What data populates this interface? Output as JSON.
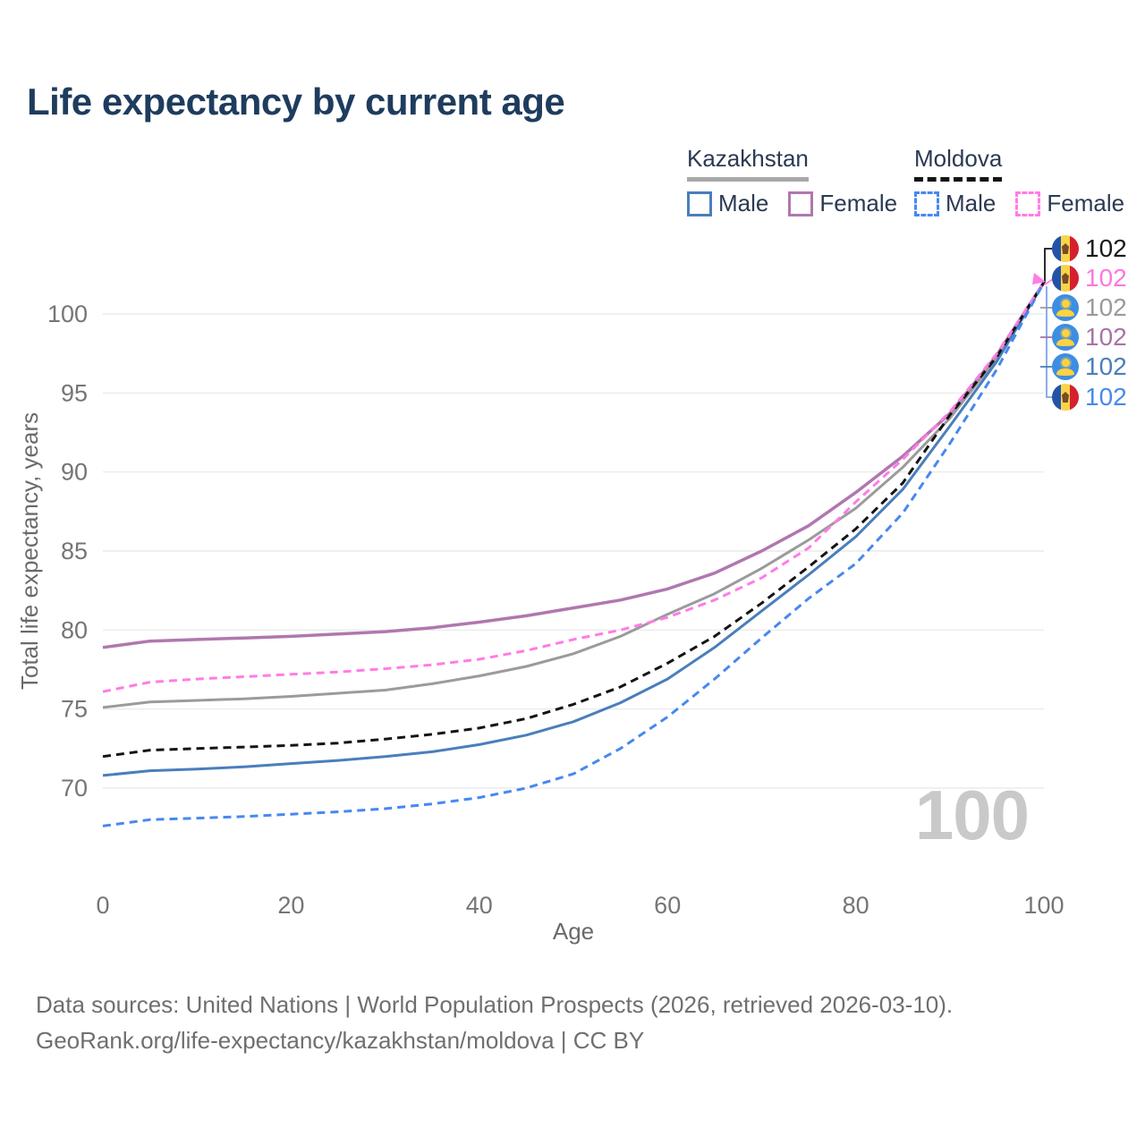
{
  "title": "Life expectancy by current age",
  "legend": {
    "groups": [
      {
        "name": "Kazakhstan",
        "line_style": "solid",
        "underline_color": "#a8a8a8",
        "items": [
          {
            "label": "Male",
            "color": "#4a7ebc",
            "dashed": false
          },
          {
            "label": "Female",
            "color": "#b077af",
            "dashed": false
          }
        ]
      },
      {
        "name": "Moldova",
        "line_style": "dashed",
        "underline_color": "#141414",
        "items": [
          {
            "label": "Male",
            "color": "#4788f0",
            "dashed": true
          },
          {
            "label": "Female",
            "color": "#ff7ce5",
            "dashed": true
          }
        ]
      }
    ]
  },
  "end_labels": [
    {
      "flag": "moldova",
      "value": "102",
      "color": "#1a1a1a",
      "series": "Moldova total"
    },
    {
      "flag": "moldova",
      "value": "102",
      "color": "#ff77dd",
      "series": "Moldova female"
    },
    {
      "flag": "kazakhstan",
      "value": "102",
      "color": "#9a9a9a",
      "series": "Kazakhstan total"
    },
    {
      "flag": "kazakhstan",
      "value": "102",
      "color": "#a873a6",
      "series": "Kazakhstan female"
    },
    {
      "flag": "kazakhstan",
      "value": "102",
      "color": "#4a7ebc",
      "series": "Kazakhstan male"
    },
    {
      "flag": "moldova",
      "value": "102",
      "color": "#4788f0",
      "series": "Moldova male"
    }
  ],
  "watermark": "100",
  "footer": {
    "line1": "Data sources: United Nations | World Population Prospects (2026, retrieved 2026-03-10).",
    "line2": "GeoRank.org/life-expectancy/kazakhstan/moldova | CC BY"
  },
  "chart_data": {
    "type": "line",
    "title": "Life expectancy by current age",
    "xlabel": "Age",
    "ylabel": "Total life expectancy, years",
    "x": [
      0,
      5,
      10,
      15,
      20,
      25,
      30,
      35,
      40,
      45,
      50,
      55,
      60,
      65,
      70,
      75,
      80,
      85,
      90,
      95,
      100
    ],
    "xticks": [
      0,
      20,
      40,
      60,
      80,
      100
    ],
    "yticks": [
      70,
      75,
      80,
      85,
      90,
      95,
      100
    ],
    "xlim": [
      0,
      100
    ],
    "ylim": [
      66,
      103.5
    ],
    "grid": true,
    "legend_position": "top-right",
    "series": [
      {
        "name": "Kazakhstan Female",
        "color": "#b077af",
        "dashed": false,
        "width": 3.5,
        "values": [
          78.9,
          79.3,
          79.4,
          79.5,
          79.6,
          79.75,
          79.9,
          80.15,
          80.5,
          80.9,
          81.4,
          81.9,
          82.6,
          83.6,
          85.0,
          86.6,
          88.7,
          91.0,
          93.7,
          97.4,
          102
        ]
      },
      {
        "name": "Kazakhstan Total",
        "color": "#9b9b9b",
        "dashed": false,
        "width": 3,
        "values": [
          75.1,
          75.45,
          75.55,
          75.65,
          75.8,
          76.0,
          76.2,
          76.6,
          77.1,
          77.7,
          78.5,
          79.6,
          81.0,
          82.3,
          83.9,
          85.7,
          87.7,
          90.3,
          93.4,
          97.2,
          102
        ]
      },
      {
        "name": "Kazakhstan Male",
        "color": "#4a7ebc",
        "dashed": false,
        "width": 3,
        "values": [
          70.8,
          71.1,
          71.2,
          71.35,
          71.55,
          71.75,
          72.0,
          72.3,
          72.75,
          73.35,
          74.2,
          75.4,
          76.9,
          78.9,
          81.2,
          83.5,
          85.9,
          88.9,
          92.9,
          97.0,
          102
        ]
      },
      {
        "name": "Moldova Total",
        "color": "#141414",
        "dashed": true,
        "width": 3,
        "values": [
          72.0,
          72.4,
          72.5,
          72.6,
          72.7,
          72.85,
          73.1,
          73.4,
          73.8,
          74.4,
          75.3,
          76.4,
          77.9,
          79.6,
          81.7,
          84.0,
          86.4,
          89.3,
          93.6,
          97.3,
          102
        ]
      },
      {
        "name": "Moldova Female",
        "color": "#ff7ce5",
        "dashed": true,
        "width": 3,
        "values": [
          76.1,
          76.7,
          76.9,
          77.05,
          77.2,
          77.35,
          77.55,
          77.8,
          78.15,
          78.7,
          79.4,
          80.0,
          80.8,
          81.9,
          83.3,
          85.2,
          88.1,
          90.8,
          93.8,
          97.5,
          102
        ]
      },
      {
        "name": "Moldova Male",
        "color": "#4788f0",
        "dashed": true,
        "width": 3,
        "values": [
          67.6,
          68.0,
          68.1,
          68.2,
          68.35,
          68.5,
          68.7,
          69.0,
          69.4,
          70.0,
          70.9,
          72.5,
          74.5,
          76.9,
          79.5,
          82.0,
          84.2,
          87.4,
          91.8,
          96.5,
          102
        ]
      }
    ]
  }
}
